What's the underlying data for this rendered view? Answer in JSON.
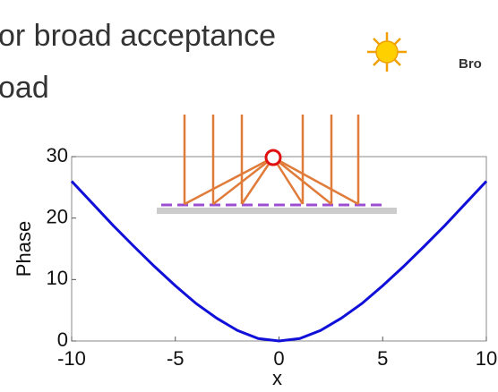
{
  "header": {
    "line1": "or broad acceptance",
    "line2": "oad",
    "side": "Bro"
  },
  "chart_data": {
    "type": "line",
    "xlabel": "x",
    "ylabel": "Phase",
    "x": [
      -10,
      -9,
      -8,
      -7,
      -6,
      -5,
      -4,
      -3,
      -2,
      -1,
      0,
      1,
      2,
      3,
      4,
      5,
      6,
      7,
      8,
      9,
      10
    ],
    "values": [
      26.0,
      22.4,
      18.8,
      15.4,
      12.1,
      9.0,
      6.1,
      3.7,
      1.7,
      0.4,
      0,
      0.4,
      1.7,
      3.7,
      6.1,
      9.0,
      12.1,
      15.4,
      18.8,
      22.4,
      26.0
    ],
    "color": "#1010d8",
    "xlim": [
      -10,
      10
    ],
    "ylim": [
      0,
      30
    ],
    "xticks": [
      -10,
      -5,
      0,
      5,
      10
    ],
    "yticks": [
      0,
      10,
      20,
      30
    ]
  }
}
